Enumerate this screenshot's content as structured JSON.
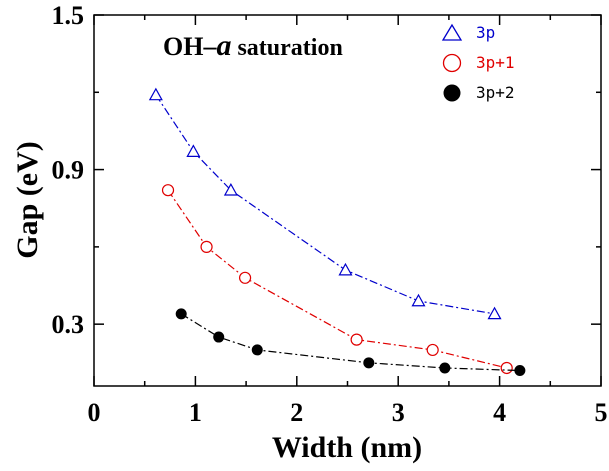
{
  "chart_data": {
    "type": "line",
    "xlabel": "Width (nm)",
    "ylabel": "Gap (eV)",
    "xlim": [
      0,
      5
    ],
    "ylim": [
      0.06,
      1.5
    ],
    "xticks": [
      "0",
      "1",
      "2",
      "3",
      "4",
      "5"
    ],
    "yticks": [
      "0.3",
      "0.9",
      "1.5"
    ],
    "ytick_values": [
      0.3,
      0.9,
      1.5
    ],
    "annotation_prefix": "OH–",
    "annotation_italic": "a",
    "annotation_suffix": " saturation",
    "legend_position": "top-right",
    "grid": false,
    "series": [
      {
        "name": "3p",
        "color": "#0000cc",
        "marker": "triangle-open",
        "x": [
          0.61,
          0.98,
          1.35,
          2.48,
          3.2,
          3.95
        ],
        "y": [
          1.19,
          0.97,
          0.82,
          0.51,
          0.39,
          0.34
        ]
      },
      {
        "name": "3p+1",
        "color": "#e00000",
        "marker": "circle-open",
        "x": [
          0.73,
          1.11,
          1.49,
          2.59,
          3.34,
          4.07
        ],
        "y": [
          0.82,
          0.6,
          0.48,
          0.24,
          0.2,
          0.13
        ]
      },
      {
        "name": "3p+2",
        "color": "#000000",
        "marker": "circle-filled",
        "x": [
          0.86,
          1.23,
          1.61,
          2.71,
          3.46,
          4.2
        ],
        "y": [
          0.34,
          0.25,
          0.2,
          0.15,
          0.13,
          0.12
        ]
      }
    ]
  }
}
